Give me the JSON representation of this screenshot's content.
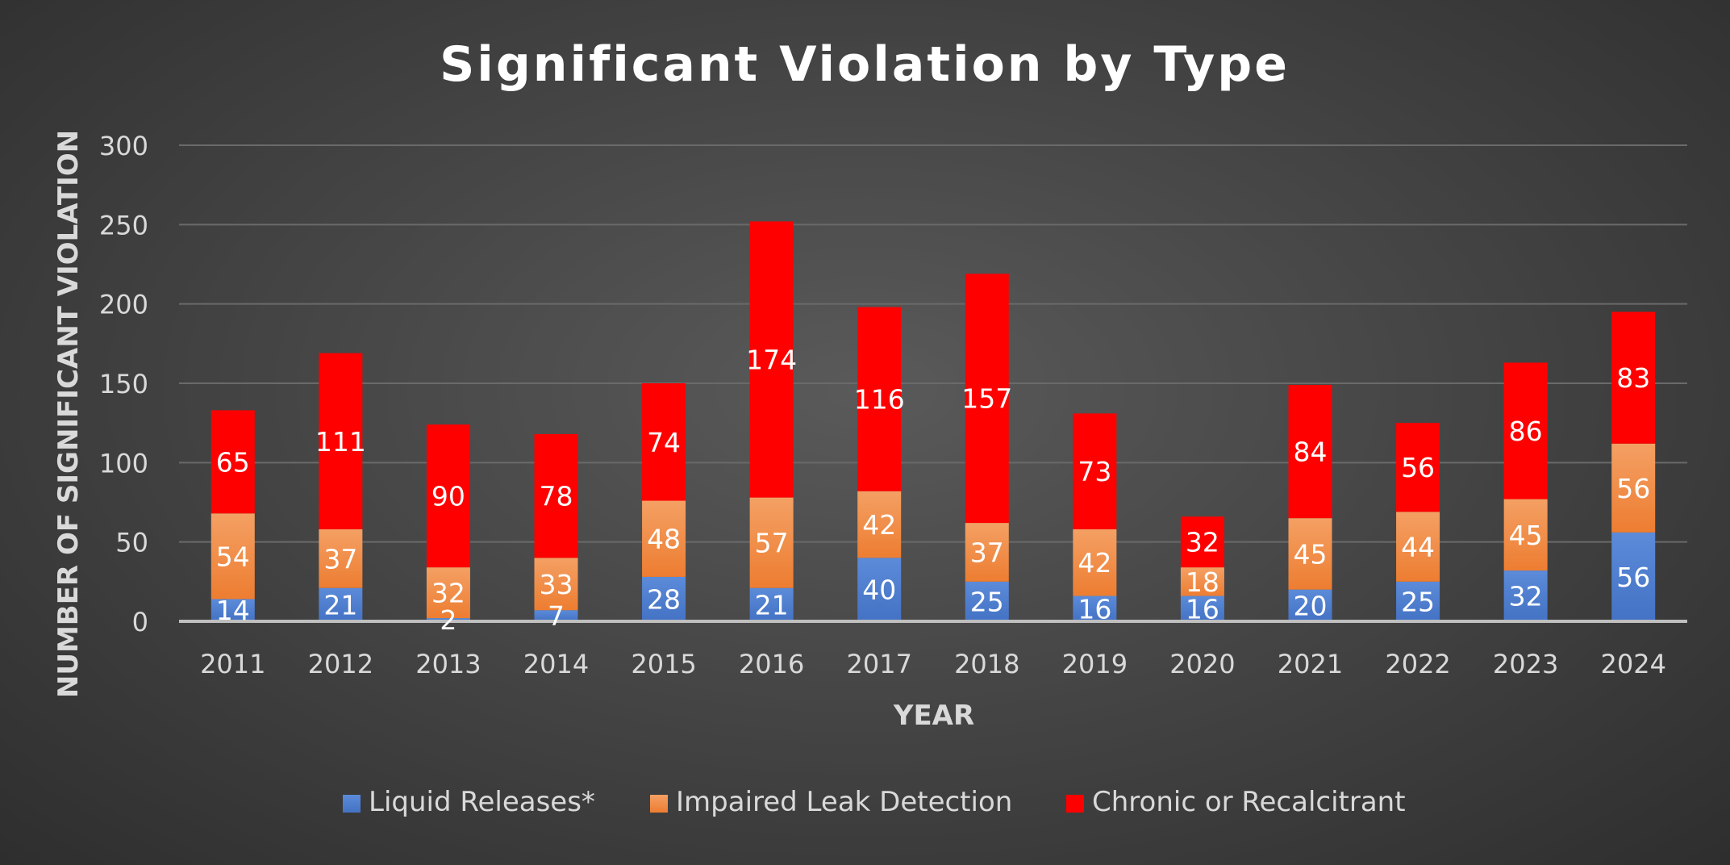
{
  "chart_data": {
    "type": "bar",
    "stacked": true,
    "title": "Significant Violation by Type",
    "xlabel": "YEAR",
    "ylabel": "NUMBER OF SIGNIFICANT VIOLATION",
    "ylim": [
      0,
      300
    ],
    "yticks": [
      0,
      50,
      100,
      150,
      200,
      250,
      300
    ],
    "grid": true,
    "legend_position": "bottom",
    "categories": [
      "2011",
      "2012",
      "2013",
      "2014",
      "2015",
      "2016",
      "2017",
      "2018",
      "2019",
      "2020",
      "2021",
      "2022",
      "2023",
      "2024"
    ],
    "series": [
      {
        "name": "Liquid Releases*",
        "color": "#4472c4",
        "color_top": "#5b8bd9",
        "values": [
          14,
          21,
          2,
          7,
          28,
          21,
          40,
          25,
          16,
          16,
          20,
          25,
          32,
          56
        ]
      },
      {
        "name": "Impaired Leak Detection",
        "color": "#ed7d31",
        "color_top": "#f4a064",
        "values": [
          54,
          37,
          32,
          33,
          48,
          57,
          42,
          37,
          42,
          18,
          45,
          44,
          45,
          56
        ]
      },
      {
        "name": "Chronic or Recalcitrant",
        "color": "#ff0000",
        "color_top": "#ff0000",
        "values": [
          65,
          111,
          90,
          78,
          74,
          174,
          116,
          157,
          73,
          32,
          84,
          56,
          86,
          83
        ]
      }
    ]
  }
}
